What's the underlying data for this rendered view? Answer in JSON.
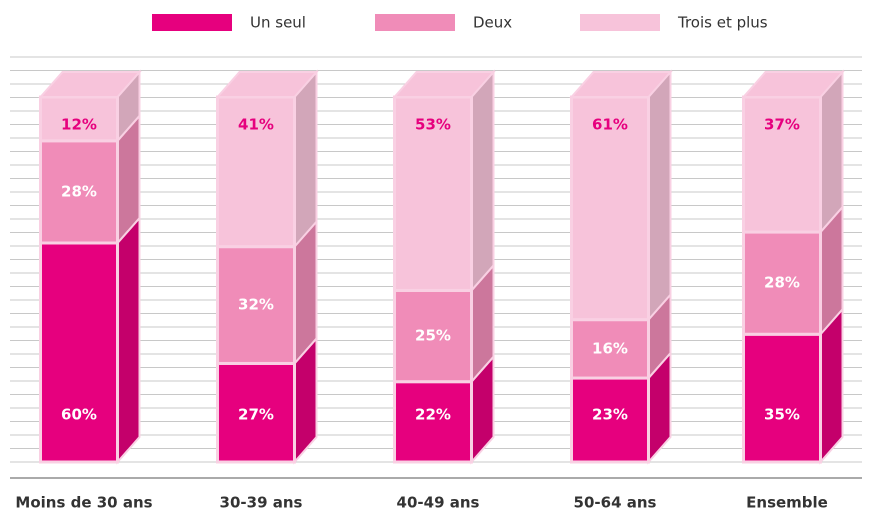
{
  "chart_data": {
    "type": "stacked-bar",
    "categories": [
      "Moins de 30 ans",
      "30-39 ans",
      "40-49 ans",
      "50-64 ans",
      "Ensemble"
    ],
    "series": [
      {
        "name": "Un seul",
        "color": "#e6007e",
        "values": [
          60,
          27,
          22,
          23,
          35
        ],
        "value_labels": [
          "60%",
          "27%",
          "22%",
          "23%",
          "35%"
        ]
      },
      {
        "name": "Deux",
        "color": "#f08cb8",
        "values": [
          28,
          32,
          25,
          16,
          28
        ],
        "value_labels": [
          "28%",
          "32%",
          "25%",
          "16%",
          "28%"
        ]
      },
      {
        "name": "Trois et plus",
        "color": "#f7c3da",
        "values": [
          12,
          41,
          53,
          61,
          37
        ],
        "value_labels": [
          "12%",
          "41%",
          "53%",
          "61%",
          "37%"
        ]
      }
    ]
  }
}
